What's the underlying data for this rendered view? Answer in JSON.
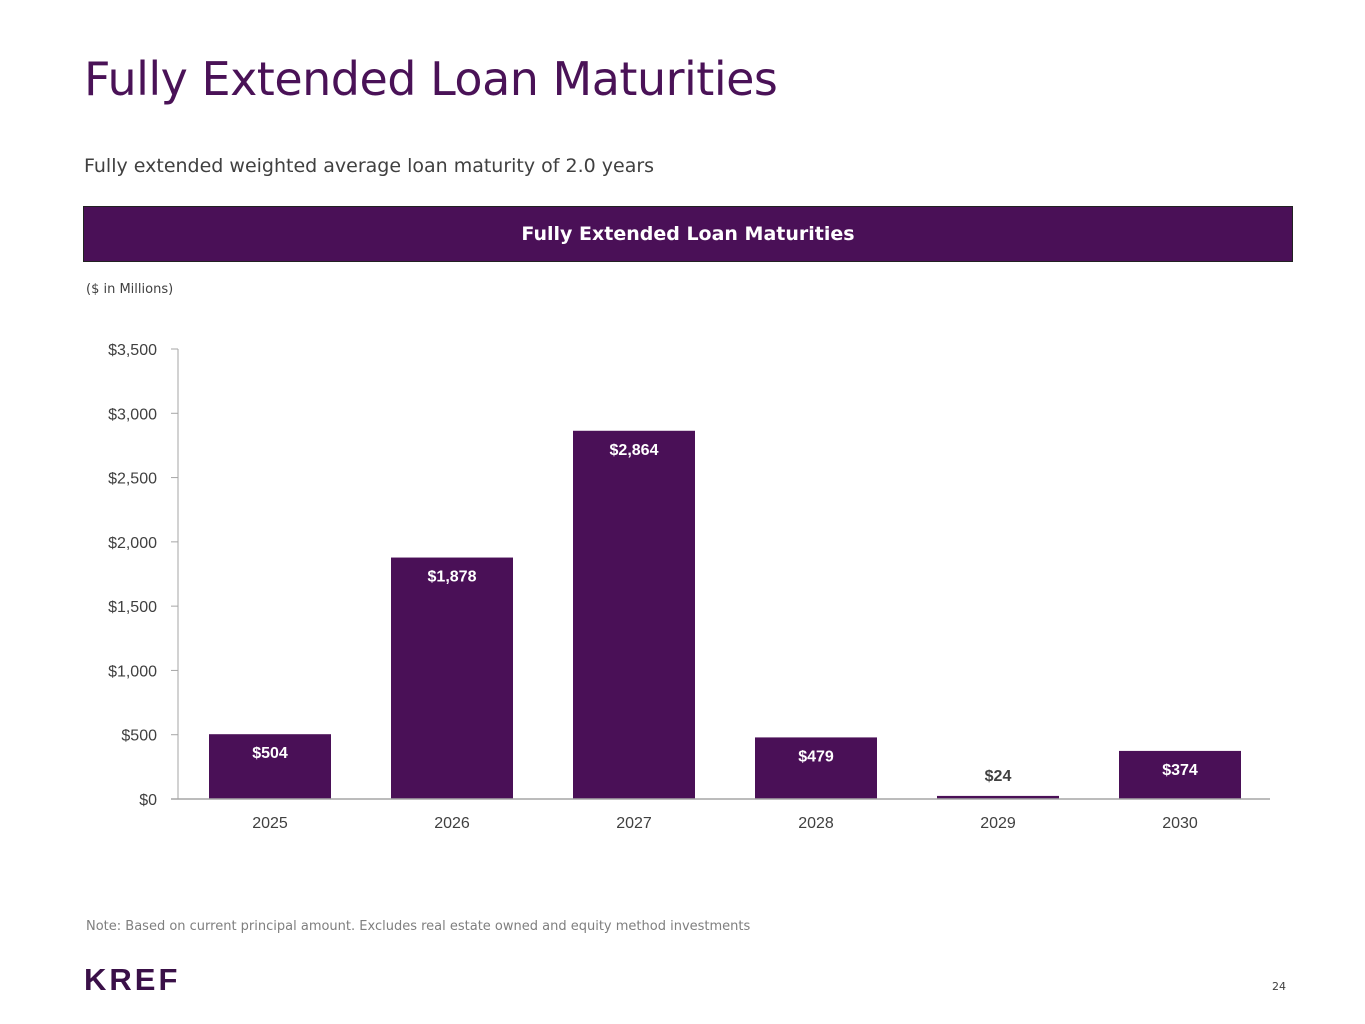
{
  "title": "Fully Extended Loan Maturities",
  "subtitle": "Fully extended weighted average loan maturity of 2.0 years",
  "banner": "Fully Extended Loan Maturities",
  "units": "($ in Millions)",
  "note": "Note: Based on current principal amount. Excludes real estate owned and equity method investments",
  "logo": "KREF",
  "page_number": "24",
  "colors": {
    "bar": "#4a1057",
    "title": "#4a1257"
  },
  "chart_data": {
    "type": "bar",
    "title": "Fully Extended Loan Maturities",
    "xlabel": "",
    "ylabel": "($ in Millions)",
    "categories": [
      "2025",
      "2026",
      "2027",
      "2028",
      "2029",
      "2030"
    ],
    "values": [
      504,
      1878,
      2864,
      479,
      24,
      374
    ],
    "data_labels": [
      "$504",
      "$1,878",
      "$2,864",
      "$479",
      "$24",
      "$374"
    ],
    "ylim": [
      0,
      3500
    ],
    "yticks": [
      0,
      500,
      1000,
      1500,
      2000,
      2500,
      3000,
      3500
    ],
    "ytick_labels": [
      "$0",
      "$500",
      "$1,000",
      "$1,500",
      "$2,000",
      "$2,500",
      "$3,000",
      "$3,500"
    ],
    "grid": false,
    "legend": "none"
  }
}
